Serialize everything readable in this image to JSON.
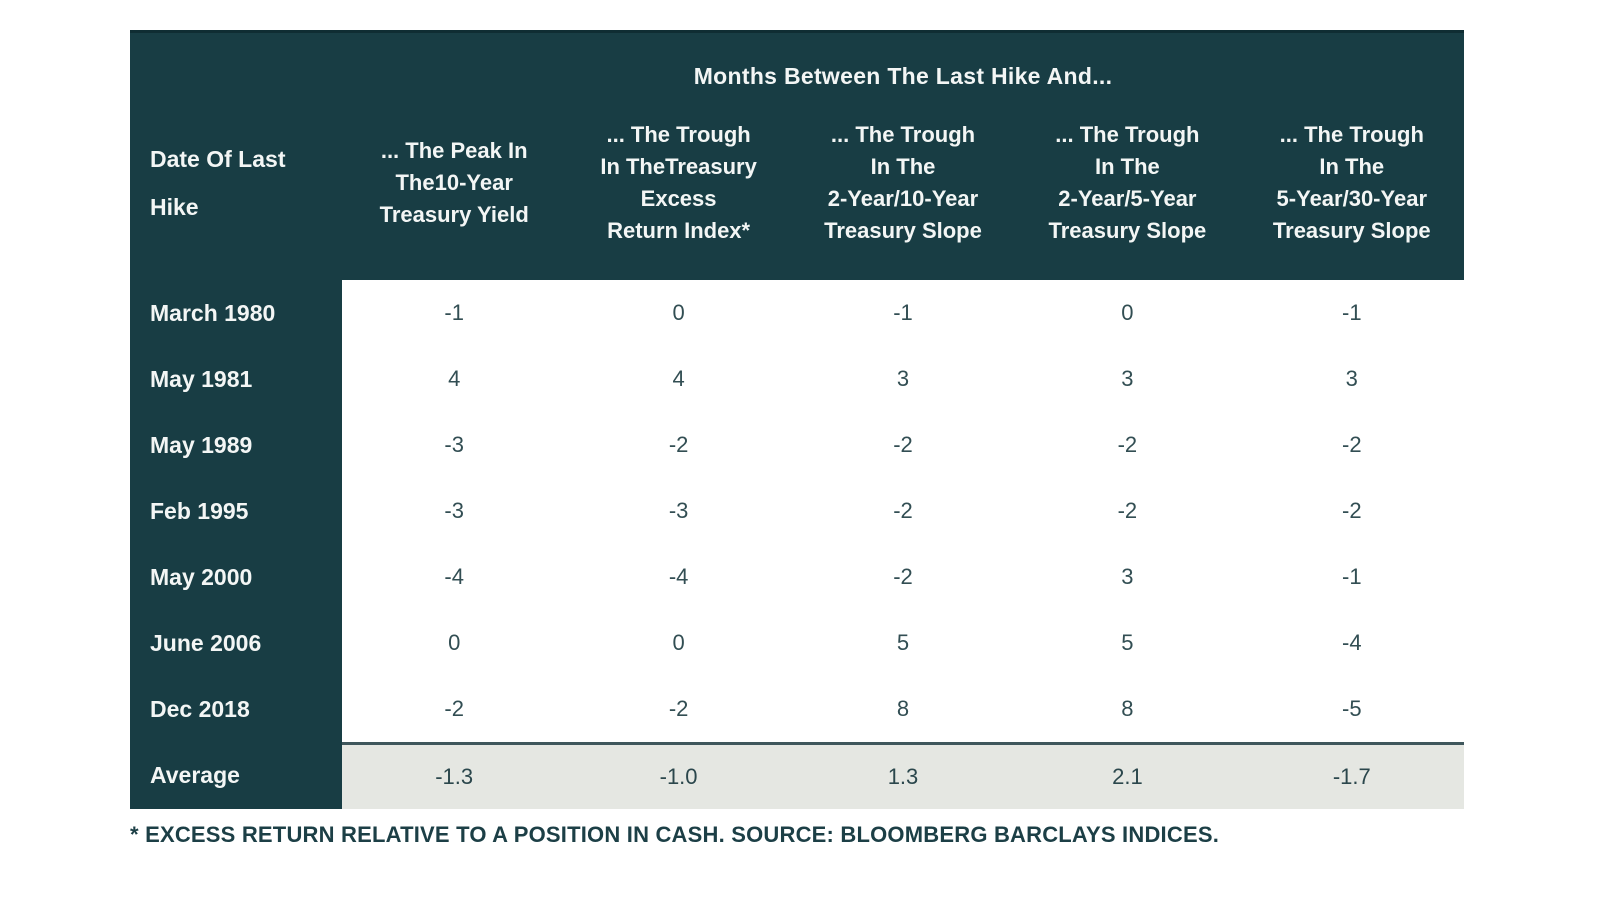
{
  "table": {
    "group_header": "Months Between The Last Hike And...",
    "row_header_label": "Date Of Last\nHike",
    "columns": [
      "... The Peak In\nThe10-Year\nTreasury Yield",
      "... The Trough\nIn TheTreasury\nExcess\nReturn Index*",
      "... The Trough\nIn The\n2-Year/10-Year\nTreasury Slope",
      "... The Trough\nIn The\n2-Year/5-Year\nTreasury Slope",
      "... The Trough\nIn The\n5-Year/30-Year\nTreasury Slope"
    ],
    "rows": [
      {
        "label": "March 1980",
        "values": [
          "-1",
          "0",
          "-1",
          "0",
          "-1"
        ]
      },
      {
        "label": "May 1981",
        "values": [
          "4",
          "4",
          "3",
          "3",
          "3"
        ]
      },
      {
        "label": "May 1989",
        "values": [
          "-3",
          "-2",
          "-2",
          "-2",
          "-2"
        ]
      },
      {
        "label": "Feb 1995",
        "values": [
          "-3",
          "-3",
          "-2",
          "-2",
          "-2"
        ]
      },
      {
        "label": "May 2000",
        "values": [
          "-4",
          "-4",
          "-2",
          "3",
          "-1"
        ]
      },
      {
        "label": "June 2006",
        "values": [
          "0",
          "0",
          "5",
          "5",
          "-4"
        ]
      },
      {
        "label": "Dec 2018",
        "values": [
          "-2",
          "-2",
          "8",
          "8",
          "-5"
        ]
      }
    ],
    "average": {
      "label": "Average",
      "values": [
        "-1.3",
        "-1.0",
        "1.3",
        "2.1",
        "-1.7"
      ]
    }
  },
  "footnote": "* EXCESS RETURN RELATIVE TO A POSITION IN CASH. SOURCE: BLOOMBERG BARCLAYS INDICES.",
  "colors": {
    "header_teal": "#183d44",
    "header_text": "#f3f6f5",
    "value_text": "#324e53",
    "average_row_bg": "#e5e7e2",
    "average_row_border": "#3f575c",
    "footnote_text": "#1c3f46"
  },
  "chart_data": {
    "type": "table",
    "title": "Months Between The Last Hike And...",
    "row_header": "Date Of Last Hike",
    "columns": [
      "... The Peak In The10-Year Treasury Yield",
      "... The Trough In TheTreasury Excess Return Index*",
      "... The Trough In The 2-Year/10-Year Treasury Slope",
      "... The Trough In The 2-Year/5-Year Treasury Slope",
      "... The Trough In The 5-Year/30-Year Treasury Slope"
    ],
    "rows": [
      {
        "date": "March 1980",
        "values": [
          -1,
          0,
          -1,
          0,
          -1
        ]
      },
      {
        "date": "May 1981",
        "values": [
          4,
          4,
          3,
          3,
          3
        ]
      },
      {
        "date": "May 1989",
        "values": [
          -3,
          -2,
          -2,
          -2,
          -2
        ]
      },
      {
        "date": "Feb 1995",
        "values": [
          -3,
          -3,
          -2,
          -2,
          -2
        ]
      },
      {
        "date": "May 2000",
        "values": [
          -4,
          -4,
          -2,
          3,
          -1
        ]
      },
      {
        "date": "June 2006",
        "values": [
          0,
          0,
          5,
          5,
          -4
        ]
      },
      {
        "date": "Dec 2018",
        "values": [
          -2,
          -2,
          8,
          8,
          -5
        ]
      }
    ],
    "average": {
      "date": "Average",
      "values": [
        -1.3,
        -1.0,
        1.3,
        2.1,
        -1.7
      ]
    },
    "footnote": "* EXCESS RETURN RELATIVE TO A POSITION IN CASH. SOURCE: BLOOMBERG BARCLAYS INDICES."
  }
}
